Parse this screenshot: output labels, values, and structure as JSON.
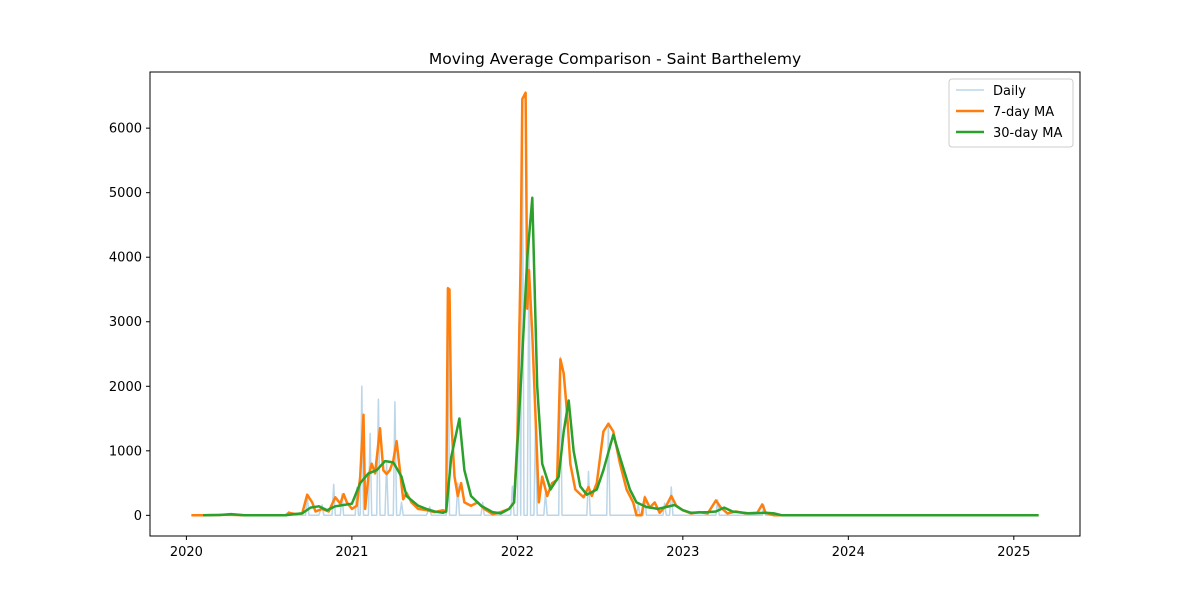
{
  "chart_data": {
    "type": "line",
    "title": "Moving Average Comparison - Saint Barthelemy",
    "xlabel": "",
    "ylabel": "",
    "xlim": [
      2019.78,
      2025.4
    ],
    "ylim": [
      -320,
      6870
    ],
    "x_ticks": [
      2020,
      2021,
      2022,
      2023,
      2024,
      2025
    ],
    "x_tick_labels": [
      "2020",
      "2021",
      "2022",
      "2023",
      "2024",
      "2025"
    ],
    "y_ticks": [
      0,
      1000,
      2000,
      3000,
      4000,
      5000,
      6000
    ],
    "y_tick_labels": [
      "0",
      "1000",
      "2000",
      "3000",
      "4000",
      "5000",
      "6000"
    ],
    "grid": false,
    "legend_position": "upper right",
    "series": [
      {
        "name": "Daily",
        "color": "#1f77b4",
        "opacity": 0.3,
        "width": 1.5,
        "points": [
          [
            2020.03,
            0
          ],
          [
            2020.6,
            0
          ],
          [
            2020.62,
            60
          ],
          [
            2020.63,
            0
          ],
          [
            2020.72,
            0
          ],
          [
            2020.73,
            320
          ],
          [
            2020.74,
            0
          ],
          [
            2020.8,
            0
          ],
          [
            2020.82,
            160
          ],
          [
            2020.83,
            0
          ],
          [
            2020.88,
            0
          ],
          [
            2020.89,
            480
          ],
          [
            2020.9,
            0
          ],
          [
            2020.93,
            0
          ],
          [
            2020.94,
            330
          ],
          [
            2020.95,
            0
          ],
          [
            2021.02,
            0
          ],
          [
            2021.03,
            430
          ],
          [
            2021.04,
            0
          ],
          [
            2021.05,
            0
          ],
          [
            2021.06,
            2000
          ],
          [
            2021.07,
            0
          ],
          [
            2021.1,
            0
          ],
          [
            2021.11,
            1270
          ],
          [
            2021.12,
            0
          ],
          [
            2021.15,
            0
          ],
          [
            2021.16,
            1800
          ],
          [
            2021.17,
            0
          ],
          [
            2021.2,
            0
          ],
          [
            2021.21,
            800
          ],
          [
            2021.22,
            0
          ],
          [
            2021.25,
            0
          ],
          [
            2021.26,
            1760
          ],
          [
            2021.27,
            0
          ],
          [
            2021.29,
            0
          ],
          [
            2021.3,
            200
          ],
          [
            2021.31,
            0
          ],
          [
            2021.45,
            0
          ],
          [
            2021.47,
            130
          ],
          [
            2021.48,
            0
          ],
          [
            2021.57,
            0
          ],
          [
            2021.58,
            3530
          ],
          [
            2021.59,
            0
          ],
          [
            2021.63,
            0
          ],
          [
            2021.64,
            500
          ],
          [
            2021.65,
            0
          ],
          [
            2021.78,
            0
          ],
          [
            2021.79,
            200
          ],
          [
            2021.8,
            0
          ],
          [
            2021.96,
            0
          ],
          [
            2021.97,
            450
          ],
          [
            2021.98,
            0
          ],
          [
            2022.0,
            0
          ],
          [
            2022.01,
            3000
          ],
          [
            2022.02,
            0
          ],
          [
            2022.03,
            6450
          ],
          [
            2022.04,
            0
          ],
          [
            2022.06,
            0
          ],
          [
            2022.07,
            4250
          ],
          [
            2022.08,
            0
          ],
          [
            2022.1,
            0
          ],
          [
            2022.11,
            1500
          ],
          [
            2022.12,
            0
          ],
          [
            2022.16,
            0
          ],
          [
            2022.17,
            350
          ],
          [
            2022.18,
            0
          ],
          [
            2022.25,
            0
          ],
          [
            2022.26,
            2450
          ],
          [
            2022.27,
            0
          ],
          [
            2022.42,
            0
          ],
          [
            2022.43,
            680
          ],
          [
            2022.44,
            0
          ],
          [
            2022.54,
            0
          ],
          [
            2022.55,
            1380
          ],
          [
            2022.56,
            0
          ],
          [
            2022.72,
            0
          ],
          [
            2022.73,
            170
          ],
          [
            2022.74,
            0
          ],
          [
            2022.76,
            0
          ],
          [
            2022.77,
            300
          ],
          [
            2022.78,
            0
          ],
          [
            2022.88,
            0
          ],
          [
            2022.89,
            190
          ],
          [
            2022.9,
            0
          ],
          [
            2022.92,
            0
          ],
          [
            2022.93,
            440
          ],
          [
            2022.94,
            0
          ],
          [
            2023.2,
            0
          ],
          [
            2023.21,
            240
          ],
          [
            2023.22,
            0
          ],
          [
            2023.48,
            0
          ],
          [
            2023.49,
            160
          ],
          [
            2023.5,
            0
          ],
          [
            2025.15,
            0
          ]
        ]
      },
      {
        "name": "7-day MA",
        "color": "#ff7f0e",
        "opacity": 1,
        "width": 2.5,
        "points": [
          [
            2020.03,
            0
          ],
          [
            2020.1,
            0
          ],
          [
            2020.25,
            10
          ],
          [
            2020.35,
            0
          ],
          [
            2020.6,
            0
          ],
          [
            2020.62,
            40
          ],
          [
            2020.66,
            20
          ],
          [
            2020.7,
            30
          ],
          [
            2020.73,
            320
          ],
          [
            2020.76,
            200
          ],
          [
            2020.78,
            60
          ],
          [
            2020.82,
            100
          ],
          [
            2020.86,
            60
          ],
          [
            2020.9,
            280
          ],
          [
            2020.93,
            180
          ],
          [
            2020.95,
            330
          ],
          [
            2020.97,
            200
          ],
          [
            2021.0,
            100
          ],
          [
            2021.03,
            150
          ],
          [
            2021.05,
            600
          ],
          [
            2021.07,
            1560
          ],
          [
            2021.08,
            100
          ],
          [
            2021.1,
            600
          ],
          [
            2021.12,
            800
          ],
          [
            2021.14,
            650
          ],
          [
            2021.17,
            1350
          ],
          [
            2021.19,
            700
          ],
          [
            2021.21,
            640
          ],
          [
            2021.23,
            700
          ],
          [
            2021.25,
            850
          ],
          [
            2021.27,
            1150
          ],
          [
            2021.29,
            700
          ],
          [
            2021.31,
            250
          ],
          [
            2021.33,
            350
          ],
          [
            2021.36,
            200
          ],
          [
            2021.4,
            100
          ],
          [
            2021.45,
            80
          ],
          [
            2021.5,
            50
          ],
          [
            2021.55,
            80
          ],
          [
            2021.57,
            60
          ],
          [
            2021.58,
            3520
          ],
          [
            2021.59,
            3500
          ],
          [
            2021.6,
            1500
          ],
          [
            2021.62,
            600
          ],
          [
            2021.64,
            300
          ],
          [
            2021.66,
            500
          ],
          [
            2021.68,
            200
          ],
          [
            2021.72,
            150
          ],
          [
            2021.76,
            200
          ],
          [
            2021.8,
            100
          ],
          [
            2021.85,
            20
          ],
          [
            2021.9,
            50
          ],
          [
            2021.95,
            100
          ],
          [
            2021.98,
            200
          ],
          [
            2022.0,
            1200
          ],
          [
            2022.02,
            4000
          ],
          [
            2022.03,
            6450
          ],
          [
            2022.05,
            6550
          ],
          [
            2022.06,
            3200
          ],
          [
            2022.07,
            3800
          ],
          [
            2022.09,
            2800
          ],
          [
            2022.11,
            1500
          ],
          [
            2022.13,
            200
          ],
          [
            2022.15,
            600
          ],
          [
            2022.18,
            300
          ],
          [
            2022.21,
            500
          ],
          [
            2022.24,
            550
          ],
          [
            2022.26,
            2420
          ],
          [
            2022.28,
            2200
          ],
          [
            2022.3,
            1600
          ],
          [
            2022.32,
            800
          ],
          [
            2022.35,
            400
          ],
          [
            2022.4,
            280
          ],
          [
            2022.43,
            440
          ],
          [
            2022.45,
            300
          ],
          [
            2022.48,
            500
          ],
          [
            2022.52,
            1300
          ],
          [
            2022.55,
            1420
          ],
          [
            2022.58,
            1300
          ],
          [
            2022.62,
            800
          ],
          [
            2022.66,
            400
          ],
          [
            2022.7,
            200
          ],
          [
            2022.72,
            0
          ],
          [
            2022.75,
            0
          ],
          [
            2022.77,
            280
          ],
          [
            2022.8,
            120
          ],
          [
            2022.83,
            200
          ],
          [
            2022.86,
            40
          ],
          [
            2022.88,
            100
          ],
          [
            2022.9,
            150
          ],
          [
            2022.93,
            300
          ],
          [
            2022.96,
            150
          ],
          [
            2023.0,
            80
          ],
          [
            2023.05,
            30
          ],
          [
            2023.1,
            50
          ],
          [
            2023.15,
            30
          ],
          [
            2023.2,
            230
          ],
          [
            2023.23,
            120
          ],
          [
            2023.27,
            30
          ],
          [
            2023.32,
            60
          ],
          [
            2023.38,
            30
          ],
          [
            2023.45,
            40
          ],
          [
            2023.48,
            170
          ],
          [
            2023.5,
            40
          ],
          [
            2023.55,
            0
          ],
          [
            2025.15,
            0
          ]
        ]
      },
      {
        "name": "30-day MA",
        "color": "#2ca02c",
        "opacity": 1,
        "width": 2.5,
        "points": [
          [
            2020.1,
            0
          ],
          [
            2020.2,
            5
          ],
          [
            2020.27,
            20
          ],
          [
            2020.35,
            0
          ],
          [
            2020.6,
            0
          ],
          [
            2020.65,
            20
          ],
          [
            2020.7,
            30
          ],
          [
            2020.75,
            120
          ],
          [
            2020.8,
            140
          ],
          [
            2020.85,
            80
          ],
          [
            2020.9,
            140
          ],
          [
            2020.95,
            160
          ],
          [
            2021.0,
            180
          ],
          [
            2021.05,
            500
          ],
          [
            2021.1,
            650
          ],
          [
            2021.15,
            700
          ],
          [
            2021.2,
            840
          ],
          [
            2021.25,
            820
          ],
          [
            2021.3,
            600
          ],
          [
            2021.33,
            300
          ],
          [
            2021.4,
            150
          ],
          [
            2021.45,
            100
          ],
          [
            2021.5,
            60
          ],
          [
            2021.55,
            40
          ],
          [
            2021.57,
            60
          ],
          [
            2021.6,
            900
          ],
          [
            2021.65,
            1500
          ],
          [
            2021.68,
            700
          ],
          [
            2021.72,
            300
          ],
          [
            2021.78,
            150
          ],
          [
            2021.85,
            50
          ],
          [
            2021.9,
            30
          ],
          [
            2021.95,
            100
          ],
          [
            2021.98,
            200
          ],
          [
            2022.02,
            2000
          ],
          [
            2022.06,
            4000
          ],
          [
            2022.09,
            4920
          ],
          [
            2022.12,
            2000
          ],
          [
            2022.15,
            800
          ],
          [
            2022.2,
            400
          ],
          [
            2022.25,
            600
          ],
          [
            2022.28,
            1300
          ],
          [
            2022.31,
            1780
          ],
          [
            2022.34,
            1000
          ],
          [
            2022.38,
            450
          ],
          [
            2022.42,
            320
          ],
          [
            2022.48,
            400
          ],
          [
            2022.52,
            700
          ],
          [
            2022.58,
            1250
          ],
          [
            2022.62,
            900
          ],
          [
            2022.68,
            400
          ],
          [
            2022.72,
            200
          ],
          [
            2022.78,
            130
          ],
          [
            2022.85,
            100
          ],
          [
            2022.9,
            130
          ],
          [
            2022.95,
            160
          ],
          [
            2023.0,
            80
          ],
          [
            2023.05,
            40
          ],
          [
            2023.15,
            50
          ],
          [
            2023.2,
            60
          ],
          [
            2023.25,
            120
          ],
          [
            2023.3,
            60
          ],
          [
            2023.4,
            30
          ],
          [
            2023.5,
            40
          ],
          [
            2023.55,
            30
          ],
          [
            2023.6,
            0
          ],
          [
            2025.15,
            0
          ]
        ]
      }
    ]
  }
}
